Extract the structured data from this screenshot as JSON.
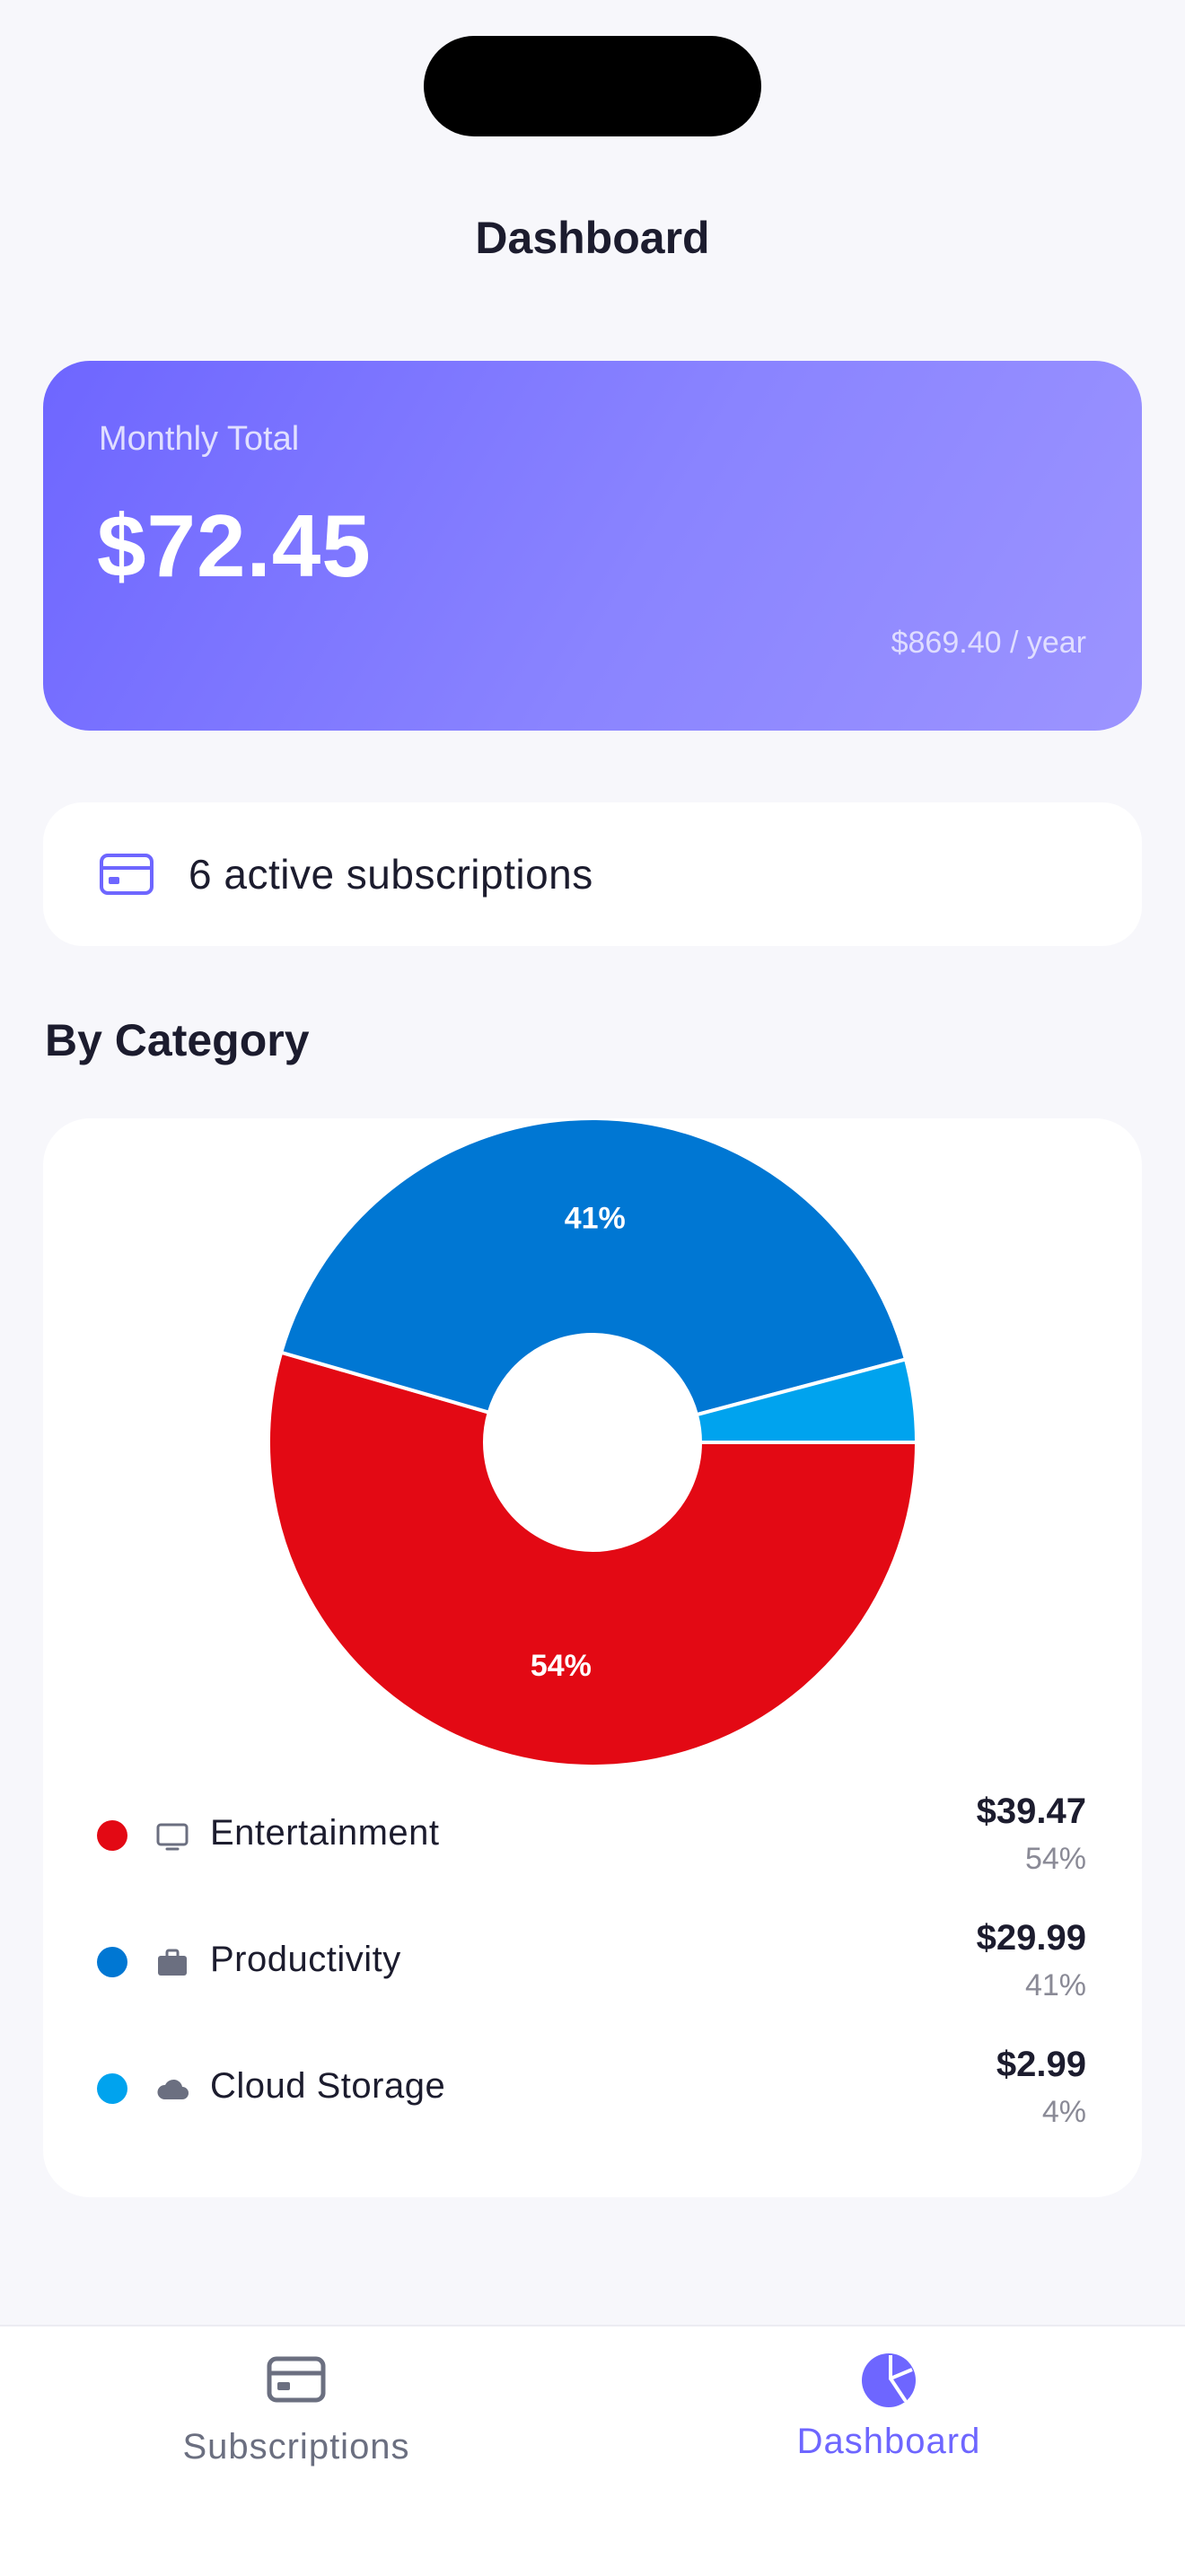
{
  "header": {
    "title": "Dashboard"
  },
  "summary": {
    "label": "Monthly Total",
    "amount": "$72.45",
    "yearly": "$869.40 / year",
    "gradient_start": "#6e66ff",
    "gradient_end": "#9c94ff"
  },
  "active": {
    "icon": "credit-card-icon",
    "text": "6 active subscriptions"
  },
  "section": {
    "title": "By Category"
  },
  "chart_data": {
    "type": "pie",
    "donut": true,
    "categories": [
      "Entertainment",
      "Productivity",
      "Cloud Storage"
    ],
    "values": [
      39.47,
      29.99,
      2.99
    ],
    "labels": [
      "54%",
      "41%",
      ""
    ],
    "colors": [
      "#e30914",
      "#0077d3",
      "#00a3ee"
    ],
    "legend": "bottom"
  },
  "legend": {
    "items": [
      {
        "name": "Entertainment",
        "amount": "$39.47",
        "percent": "54%",
        "color": "#e30914",
        "icon": "tv-icon"
      },
      {
        "name": "Productivity",
        "amount": "$29.99",
        "percent": "41%",
        "color": "#0077d3",
        "icon": "briefcase-icon"
      },
      {
        "name": "Cloud Storage",
        "amount": "$2.99",
        "percent": "4%",
        "color": "#00a3ee",
        "icon": "cloud-icon"
      }
    ]
  },
  "tabbar": {
    "tabs": [
      {
        "label": "Subscriptions",
        "icon": "credit-card-icon",
        "active": false
      },
      {
        "label": "Dashboard",
        "icon": "pie-chart-icon",
        "active": true
      }
    ],
    "active_color": "#6e66ff",
    "inactive_color": "#6b6f80"
  }
}
